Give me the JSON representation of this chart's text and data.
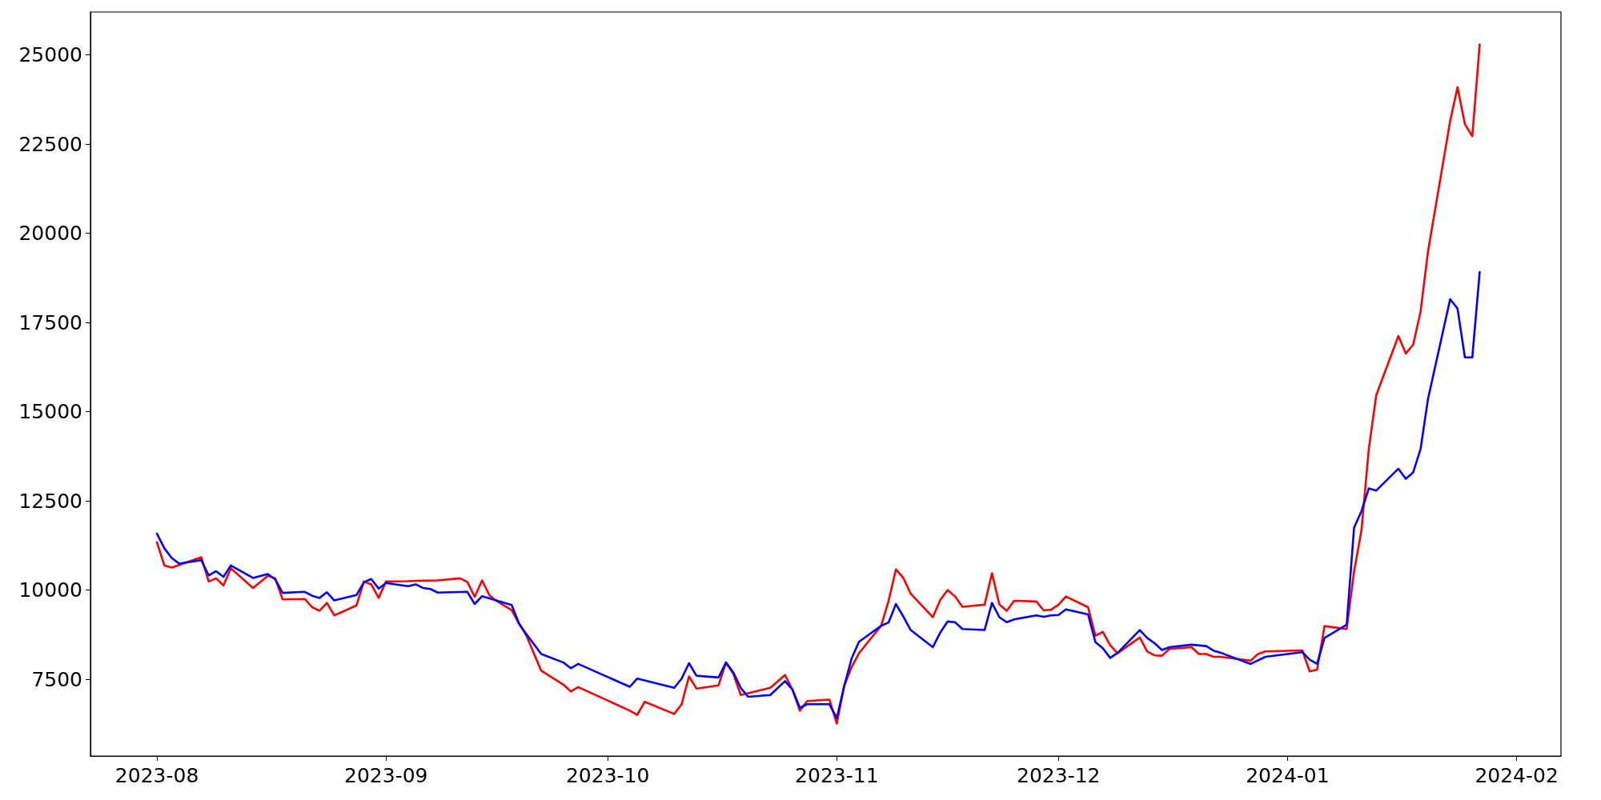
{
  "chart_data": {
    "type": "line",
    "xlim": [
      "2023-07-23",
      "2024-02-07"
    ],
    "xticks": [
      "2023-08",
      "2023-09",
      "2023-10",
      "2023-11",
      "2023-12",
      "2024-01",
      "2024-02"
    ],
    "ylim": [
      5350,
      26200
    ],
    "yticks": [
      7500,
      10000,
      12500,
      15000,
      17500,
      20000,
      22500,
      25000
    ],
    "grid": false,
    "marker": "none",
    "line_style": "solid",
    "series": [
      {
        "color": "#ff0000",
        "x": [
          "2023-08-01",
          "2023-08-02",
          "2023-08-03",
          "2023-08-07",
          "2023-08-08",
          "2023-08-09",
          "2023-08-10",
          "2023-08-11",
          "2023-08-14",
          "2023-08-16",
          "2023-08-17",
          "2023-08-18",
          "2023-08-21",
          "2023-08-22",
          "2023-08-23",
          "2023-08-24",
          "2023-08-25",
          "2023-08-28",
          "2023-08-29",
          "2023-08-30",
          "2023-08-31",
          "2023-09-01",
          "2023-09-04",
          "2023-09-05",
          "2023-09-08",
          "2023-09-11",
          "2023-09-12",
          "2023-09-13",
          "2023-09-14",
          "2023-09-15",
          "2023-09-16",
          "2023-09-18",
          "2023-09-19",
          "2023-09-20",
          "2023-09-22",
          "2023-09-25",
          "2023-09-26",
          "2023-09-27",
          "2023-10-04",
          "2023-10-05",
          "2023-10-06",
          "2023-10-10",
          "2023-10-11",
          "2023-10-12",
          "2023-10-13",
          "2023-10-16",
          "2023-10-17",
          "2023-10-18",
          "2023-10-19",
          "2023-10-23",
          "2023-10-25",
          "2023-10-26",
          "2023-10-27",
          "2023-10-28",
          "2023-10-31",
          "2023-11-01",
          "2023-11-02",
          "2023-11-03",
          "2023-11-04",
          "2023-11-07",
          "2023-11-08",
          "2023-11-09",
          "2023-11-10",
          "2023-11-11",
          "2023-11-14",
          "2023-11-15",
          "2023-11-16",
          "2023-11-17",
          "2023-11-18",
          "2023-11-21",
          "2023-11-22",
          "2023-11-23",
          "2023-11-24",
          "2023-11-25",
          "2023-11-28",
          "2023-11-29",
          "2023-11-30",
          "2023-12-01",
          "2023-12-02",
          "2023-12-05",
          "2023-12-06",
          "2023-12-07",
          "2023-12-08",
          "2023-12-09",
          "2023-12-12",
          "2023-12-13",
          "2023-12-14",
          "2023-12-15",
          "2023-12-16",
          "2023-12-19",
          "2023-12-20",
          "2023-12-21",
          "2023-12-22",
          "2023-12-23",
          "2023-12-27",
          "2023-12-28",
          "2023-12-29",
          "2024-01-03",
          "2024-01-04",
          "2024-01-05",
          "2024-01-06",
          "2024-01-09",
          "2024-01-10",
          "2024-01-11",
          "2024-01-12",
          "2024-01-13",
          "2024-01-16",
          "2024-01-17",
          "2024-01-18",
          "2024-01-19",
          "2024-01-20",
          "2024-01-23",
          "2024-01-24",
          "2024-01-25",
          "2024-01-26",
          "2024-01-27"
        ],
        "values": [
          11340,
          10690,
          10630,
          10920,
          10240,
          10330,
          10130,
          10610,
          10060,
          10400,
          10330,
          9740,
          9750,
          9520,
          9420,
          9640,
          9290,
          9570,
          10240,
          10160,
          9780,
          10240,
          10250,
          10260,
          10270,
          10330,
          10230,
          9810,
          10270,
          9850,
          9690,
          9440,
          9060,
          8720,
          7740,
          7350,
          7160,
          7280,
          6620,
          6500,
          6870,
          6530,
          6800,
          7580,
          7240,
          7330,
          7970,
          7650,
          7060,
          7260,
          7620,
          7210,
          6620,
          6890,
          6930,
          6260,
          7310,
          7840,
          8230,
          9000,
          9690,
          10580,
          10340,
          9900,
          9240,
          9720,
          10000,
          9820,
          9530,
          9590,
          10470,
          9600,
          9420,
          9700,
          9680,
          9430,
          9450,
          9590,
          9820,
          9520,
          8720,
          8830,
          8450,
          8230,
          8670,
          8280,
          8170,
          8160,
          8350,
          8400,
          8210,
          8210,
          8130,
          8130,
          8020,
          8210,
          8280,
          8310,
          7720,
          7770,
          8990,
          8910,
          10520,
          11670,
          13960,
          15460,
          17120,
          16630,
          16880,
          17800,
          19480,
          23140,
          24090,
          23060,
          22720,
          25290
        ]
      },
      {
        "color": "#0000ff",
        "x": [
          "2023-08-01",
          "2023-08-02",
          "2023-08-03",
          "2023-08-04",
          "2023-08-07",
          "2023-08-08",
          "2023-08-09",
          "2023-08-10",
          "2023-08-11",
          "2023-08-14",
          "2023-08-16",
          "2023-08-17",
          "2023-08-18",
          "2023-08-21",
          "2023-08-22",
          "2023-08-23",
          "2023-08-24",
          "2023-08-25",
          "2023-08-28",
          "2023-08-29",
          "2023-08-30",
          "2023-08-31",
          "2023-09-01",
          "2023-09-04",
          "2023-09-05",
          "2023-09-06",
          "2023-09-07",
          "2023-09-08",
          "2023-09-12",
          "2023-09-13",
          "2023-09-14",
          "2023-09-18",
          "2023-09-19",
          "2023-09-20",
          "2023-09-21",
          "2023-09-22",
          "2023-09-25",
          "2023-09-26",
          "2023-09-27",
          "2023-10-04",
          "2023-10-05",
          "2023-10-10",
          "2023-10-11",
          "2023-10-12",
          "2023-10-13",
          "2023-10-16",
          "2023-10-17",
          "2023-10-18",
          "2023-10-19",
          "2023-10-20",
          "2023-10-23",
          "2023-10-25",
          "2023-10-26",
          "2023-10-27",
          "2023-10-28",
          "2023-10-31",
          "2023-11-01",
          "2023-11-02",
          "2023-11-03",
          "2023-11-04",
          "2023-11-07",
          "2023-11-08",
          "2023-11-09",
          "2023-11-10",
          "2023-11-11",
          "2023-11-14",
          "2023-11-15",
          "2023-11-16",
          "2023-11-17",
          "2023-11-18",
          "2023-11-21",
          "2023-11-22",
          "2023-11-23",
          "2023-11-24",
          "2023-11-25",
          "2023-11-28",
          "2023-11-29",
          "2023-11-30",
          "2023-12-01",
          "2023-12-02",
          "2023-12-05",
          "2023-12-06",
          "2023-12-07",
          "2023-12-08",
          "2023-12-09",
          "2023-12-12",
          "2023-12-13",
          "2023-12-14",
          "2023-12-15",
          "2023-12-16",
          "2023-12-19",
          "2023-12-21",
          "2023-12-22",
          "2023-12-23",
          "2023-12-27",
          "2023-12-29",
          "2024-01-03",
          "2024-01-04",
          "2024-01-05",
          "2024-01-06",
          "2024-01-09",
          "2024-01-10",
          "2024-01-11",
          "2024-01-12",
          "2024-01-13",
          "2024-01-16",
          "2024-01-17",
          "2024-01-18",
          "2024-01-19",
          "2024-01-20",
          "2024-01-23",
          "2024-01-24",
          "2024-01-25",
          "2024-01-26",
          "2024-01-27"
        ],
        "values": [
          11580,
          11170,
          10900,
          10740,
          10840,
          10410,
          10530,
          10370,
          10690,
          10340,
          10450,
          10300,
          9920,
          9950,
          9840,
          9780,
          9940,
          9710,
          9860,
          10220,
          10310,
          10040,
          10200,
          10110,
          10160,
          10060,
          10030,
          9930,
          9950,
          9610,
          9830,
          9580,
          9060,
          8760,
          8490,
          8210,
          7970,
          7810,
          7930,
          7290,
          7520,
          7260,
          7520,
          7950,
          7600,
          7550,
          7970,
          7690,
          7260,
          7010,
          7060,
          7450,
          7210,
          6700,
          6800,
          6800,
          6410,
          7310,
          8080,
          8550,
          9000,
          9090,
          9610,
          9260,
          8880,
          8400,
          8810,
          9120,
          9100,
          8910,
          8880,
          9640,
          9240,
          9100,
          9180,
          9290,
          9250,
          9290,
          9300,
          9460,
          9320,
          8540,
          8370,
          8100,
          8240,
          8880,
          8660,
          8510,
          8320,
          8400,
          8470,
          8430,
          8300,
          8240,
          7930,
          8130,
          8260,
          8050,
          7930,
          8660,
          9030,
          11750,
          12210,
          12850,
          12790,
          13400,
          13120,
          13300,
          13950,
          15350,
          18150,
          17890,
          16520,
          16520,
          18910
        ]
      }
    ]
  }
}
